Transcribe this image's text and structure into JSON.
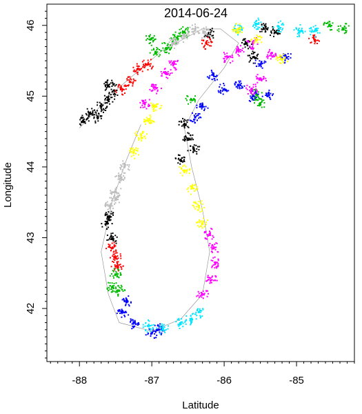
{
  "chart_data": {
    "type": "scatter",
    "title": "2014-06-24",
    "xlabel": "Latitude",
    "ylabel": "Longitude",
    "xlim": [
      -88.45,
      -84.2
    ],
    "ylim": [
      41.25,
      46.3
    ],
    "x_ticks": [
      -88,
      -87,
      -86,
      -85
    ],
    "y_ticks": [
      42,
      43,
      44,
      45,
      46
    ],
    "x_tick_labels": [
      "-88",
      "-87",
      "-86",
      "-85"
    ],
    "y_tick_labels": [
      "42",
      "43",
      "44",
      "45",
      "46"
    ],
    "grid": false,
    "legend": "none",
    "colors": {
      "black": "#000000",
      "red": "#ff0000",
      "green": "#00bb00",
      "blue": "#0000ff",
      "cyan": "#00e5ff",
      "magenta": "#ff00ff",
      "yellow": "#ffff00",
      "gray": "#bebebe"
    },
    "series": [
      {
        "color": "#000000",
        "points": [
          [
            -87.95,
            44.65
          ],
          [
            -87.85,
            44.75
          ],
          [
            -87.7,
            44.85
          ],
          [
            -87.6,
            44.95
          ],
          [
            -87.52,
            45.08
          ],
          [
            -87.6,
            45.15
          ],
          [
            -87.75,
            44.7
          ],
          [
            -87.55,
            42.98
          ],
          [
            -87.62,
            43.2
          ],
          [
            -87.58,
            43.3
          ],
          [
            -86.55,
            44.6
          ],
          [
            -86.5,
            44.4
          ],
          [
            -86.42,
            44.25
          ],
          [
            -86.6,
            44.1
          ],
          [
            -85.6,
            45.55
          ],
          [
            -85.7,
            45.75
          ],
          [
            -85.45,
            45.95
          ],
          [
            -85.3,
            45.9
          ],
          [
            -86.2,
            45.88
          ]
        ]
      },
      {
        "color": "#ff0000",
        "points": [
          [
            -87.42,
            45.1
          ],
          [
            -87.3,
            45.2
          ],
          [
            -87.2,
            45.38
          ],
          [
            -87.05,
            45.45
          ],
          [
            -87.55,
            42.85
          ],
          [
            -87.5,
            42.72
          ],
          [
            -87.48,
            42.6
          ],
          [
            -86.25,
            45.75
          ],
          [
            -84.75,
            45.8
          ]
        ]
      },
      {
        "color": "#00bb00",
        "points": [
          [
            -86.95,
            45.62
          ],
          [
            -86.8,
            45.68
          ],
          [
            -86.65,
            45.82
          ],
          [
            -86.55,
            45.9
          ],
          [
            -87.02,
            45.8
          ],
          [
            -87.5,
            42.48
          ],
          [
            -87.55,
            42.3
          ],
          [
            -87.45,
            42.25
          ],
          [
            -85.55,
            45.02
          ],
          [
            -85.5,
            44.9
          ],
          [
            -86.45,
            44.95
          ],
          [
            -84.55,
            46.0
          ],
          [
            -84.35,
            45.95
          ]
        ]
      },
      {
        "color": "#0000ff",
        "points": [
          [
            -87.35,
            42.1
          ],
          [
            -87.4,
            41.95
          ],
          [
            -87.25,
            41.8
          ],
          [
            -87.0,
            41.65
          ],
          [
            -86.9,
            41.7
          ],
          [
            -86.4,
            44.7
          ],
          [
            -86.3,
            44.85
          ],
          [
            -86.0,
            45.1
          ],
          [
            -85.8,
            45.15
          ],
          [
            -85.6,
            45.0
          ],
          [
            -85.4,
            45.0
          ],
          [
            -85.5,
            45.45
          ],
          [
            -85.15,
            45.55
          ],
          [
            -86.15,
            45.3
          ]
        ]
      },
      {
        "color": "#00e5ff",
        "points": [
          [
            -87.05,
            41.75
          ],
          [
            -86.85,
            41.72
          ],
          [
            -86.6,
            41.78
          ],
          [
            -86.45,
            41.85
          ],
          [
            -86.35,
            41.95
          ],
          [
            -85.8,
            45.95
          ],
          [
            -85.55,
            46.02
          ],
          [
            -85.25,
            45.98
          ],
          [
            -84.95,
            45.92
          ],
          [
            -84.75,
            45.92
          ]
        ]
      },
      {
        "color": "#ff00ff",
        "points": [
          [
            -86.3,
            42.2
          ],
          [
            -86.18,
            42.4
          ],
          [
            -86.12,
            42.65
          ],
          [
            -86.15,
            42.85
          ],
          [
            -86.2,
            43.05
          ],
          [
            -87.1,
            44.9
          ],
          [
            -86.95,
            45.12
          ],
          [
            -86.8,
            45.32
          ],
          [
            -86.7,
            45.45
          ],
          [
            -85.8,
            45.65
          ],
          [
            -85.95,
            45.55
          ],
          [
            -85.6,
            45.75
          ],
          [
            -85.35,
            45.6
          ],
          [
            -85.5,
            45.25
          ],
          [
            -85.62,
            45.1
          ]
        ]
      },
      {
        "color": "#ffff00",
        "points": [
          [
            -87.25,
            44.2
          ],
          [
            -87.15,
            44.45
          ],
          [
            -87.05,
            44.65
          ],
          [
            -86.95,
            44.85
          ],
          [
            -86.3,
            43.2
          ],
          [
            -86.35,
            43.45
          ],
          [
            -86.45,
            43.7
          ],
          [
            -86.55,
            43.95
          ],
          [
            -85.8,
            45.95
          ],
          [
            -85.55,
            45.8
          ],
          [
            -85.2,
            45.52
          ]
        ]
      },
      {
        "color": "#bebebe",
        "points": [
          [
            -87.58,
            43.45
          ],
          [
            -87.5,
            43.65
          ],
          [
            -87.42,
            43.85
          ],
          [
            -87.38,
            44.0
          ],
          [
            -87.5,
            43.55
          ],
          [
            -86.7,
            45.75
          ],
          [
            -86.55,
            45.85
          ],
          [
            -86.4,
            45.95
          ],
          [
            -86.28,
            45.9
          ]
        ]
      }
    ]
  }
}
